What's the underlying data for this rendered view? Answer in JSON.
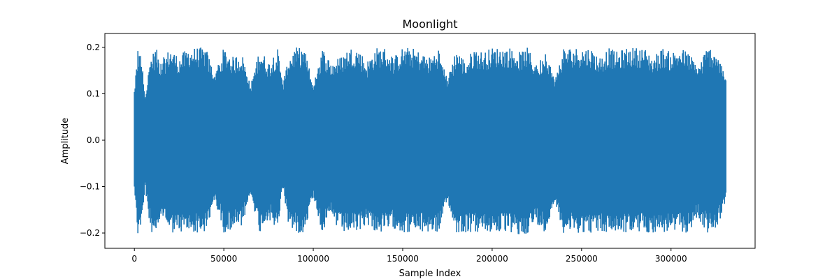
{
  "chart_data": {
    "type": "line",
    "title": "Moonlight",
    "xlabel": "Sample Index",
    "ylabel": "Amplitude",
    "xlim": [
      -16500,
      347000
    ],
    "ylim": [
      -0.233,
      0.23
    ],
    "xticks": [
      0,
      50000,
      100000,
      150000,
      200000,
      250000,
      300000
    ],
    "xtick_labels": [
      "0",
      "50000",
      "100000",
      "150000",
      "200000",
      "250000",
      "300000"
    ],
    "yticks": [
      -0.2,
      -0.1,
      0.0,
      0.1,
      0.2
    ],
    "ytick_labels": [
      "−0.2",
      "−0.1",
      "0.0",
      "0.1",
      "0.2"
    ],
    "grid": false,
    "legend": "none",
    "series_color": "#1f77b4",
    "sample_count": 330750,
    "envelope": {
      "x": [
        0,
        2000,
        4000,
        6000,
        9000,
        12000,
        15000,
        20000,
        25000,
        30000,
        35000,
        40000,
        45000,
        50000,
        55000,
        60000,
        65000,
        70000,
        75000,
        80000,
        83000,
        86000,
        90000,
        95000,
        100000,
        105000,
        110000,
        115000,
        120000,
        125000,
        130000,
        135000,
        140000,
        145000,
        150000,
        155000,
        160000,
        165000,
        170000,
        175000,
        180000,
        185000,
        190000,
        195000,
        200000,
        205000,
        210000,
        215000,
        220000,
        225000,
        230000,
        235000,
        240000,
        245000,
        250000,
        255000,
        260000,
        265000,
        270000,
        275000,
        280000,
        285000,
        290000,
        295000,
        300000,
        305000,
        310000,
        315000,
        320000,
        325000,
        330750
      ],
      "max": [
        0.11,
        0.2,
        0.18,
        0.09,
        0.18,
        0.2,
        0.17,
        0.2,
        0.18,
        0.2,
        0.2,
        0.2,
        0.14,
        0.2,
        0.18,
        0.19,
        0.12,
        0.2,
        0.17,
        0.2,
        0.12,
        0.18,
        0.2,
        0.2,
        0.12,
        0.2,
        0.17,
        0.18,
        0.2,
        0.2,
        0.17,
        0.2,
        0.2,
        0.18,
        0.2,
        0.2,
        0.19,
        0.18,
        0.2,
        0.13,
        0.2,
        0.17,
        0.2,
        0.19,
        0.2,
        0.2,
        0.2,
        0.19,
        0.2,
        0.16,
        0.2,
        0.13,
        0.2,
        0.2,
        0.2,
        0.2,
        0.18,
        0.2,
        0.19,
        0.2,
        0.2,
        0.2,
        0.18,
        0.2,
        0.19,
        0.2,
        0.19,
        0.16,
        0.2,
        0.2,
        0.13
      ],
      "min": [
        -0.1,
        -0.21,
        -0.18,
        -0.1,
        -0.2,
        -0.2,
        -0.16,
        -0.2,
        -0.2,
        -0.2,
        -0.2,
        -0.2,
        -0.13,
        -0.2,
        -0.19,
        -0.19,
        -0.12,
        -0.2,
        -0.17,
        -0.2,
        -0.1,
        -0.18,
        -0.2,
        -0.2,
        -0.12,
        -0.2,
        -0.17,
        -0.2,
        -0.2,
        -0.2,
        -0.18,
        -0.2,
        -0.2,
        -0.19,
        -0.2,
        -0.2,
        -0.2,
        -0.2,
        -0.2,
        -0.13,
        -0.2,
        -0.2,
        -0.2,
        -0.2,
        -0.2,
        -0.2,
        -0.2,
        -0.21,
        -0.2,
        -0.18,
        -0.2,
        -0.13,
        -0.2,
        -0.2,
        -0.2,
        -0.2,
        -0.2,
        -0.2,
        -0.2,
        -0.2,
        -0.2,
        -0.2,
        -0.2,
        -0.2,
        -0.2,
        -0.2,
        -0.2,
        -0.17,
        -0.2,
        -0.2,
        -0.13
      ]
    }
  }
}
